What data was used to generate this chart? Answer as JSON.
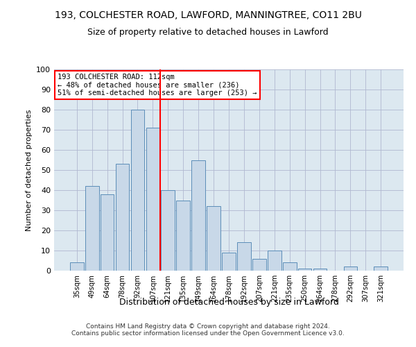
{
  "title1": "193, COLCHESTER ROAD, LAWFORD, MANNINGTREE, CO11 2BU",
  "title2": "Size of property relative to detached houses in Lawford",
  "xlabel": "Distribution of detached houses by size in Lawford",
  "ylabel": "Number of detached properties",
  "categories": [
    "35sqm",
    "49sqm",
    "64sqm",
    "78sqm",
    "92sqm",
    "107sqm",
    "121sqm",
    "135sqm",
    "149sqm",
    "164sqm",
    "178sqm",
    "192sqm",
    "207sqm",
    "221sqm",
    "235sqm",
    "250sqm",
    "264sqm",
    "278sqm",
    "292sqm",
    "307sqm",
    "321sqm"
  ],
  "values": [
    4,
    42,
    38,
    53,
    80,
    71,
    40,
    35,
    55,
    32,
    9,
    14,
    6,
    10,
    4,
    1,
    1,
    0,
    2,
    0,
    2
  ],
  "bar_color": "#c8d8e8",
  "bar_edge_color": "#5b8db8",
  "vline_x": 5.5,
  "vline_color": "red",
  "annotation_text": "193 COLCHESTER ROAD: 112sqm\n← 48% of detached houses are smaller (236)\n51% of semi-detached houses are larger (253) →",
  "annotation_box_color": "white",
  "annotation_box_edge_color": "red",
  "ylim": [
    0,
    100
  ],
  "yticks": [
    0,
    10,
    20,
    30,
    40,
    50,
    60,
    70,
    80,
    90,
    100
  ],
  "grid_color": "#b0b8d0",
  "background_color": "#dce8f0",
  "footer": "Contains HM Land Registry data © Crown copyright and database right 2024.\nContains public sector information licensed under the Open Government Licence v3.0."
}
